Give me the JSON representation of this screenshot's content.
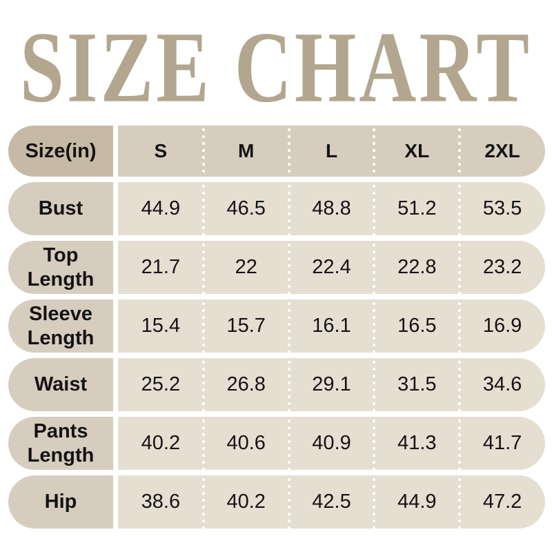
{
  "title": {
    "text": "SIZE CHART"
  },
  "colors": {
    "title_text": "#b2a68f",
    "header_label_bg": "#c6baa6",
    "label_bg": "#d6cdbe",
    "value_bg": "#e5dfd2",
    "table_text": "#131313",
    "separator_dots": "#ffffff",
    "page_bg": "#ffffff"
  },
  "table": {
    "corner_label": "Size(in)",
    "columns": [
      "S",
      "M",
      "L",
      "XL",
      "2XL"
    ],
    "rows": [
      {
        "label": "Bust",
        "values": [
          "44.9",
          "46.5",
          "48.8",
          "51.2",
          "53.5"
        ]
      },
      {
        "label": "Top Length",
        "values": [
          "21.7",
          "22",
          "22.4",
          "22.8",
          "23.2"
        ]
      },
      {
        "label": "Sleeve Length",
        "values": [
          "15.4",
          "15.7",
          "16.1",
          "16.5",
          "16.9"
        ]
      },
      {
        "label": "Waist",
        "values": [
          "25.2",
          "26.8",
          "29.1",
          "31.5",
          "34.6"
        ]
      },
      {
        "label": "Pants Length",
        "values": [
          "40.2",
          "40.6",
          "40.9",
          "41.3",
          "41.7"
        ]
      },
      {
        "label": "Hip",
        "values": [
          "38.6",
          "40.2",
          "42.5",
          "44.9",
          "47.2"
        ]
      }
    ]
  },
  "chart_data": {
    "type": "table",
    "title": "SIZE CHART",
    "columns": [
      "Size(in)",
      "S",
      "M",
      "L",
      "XL",
      "2XL"
    ],
    "rows": [
      [
        "Bust",
        44.9,
        46.5,
        48.8,
        51.2,
        53.5
      ],
      [
        "Top Length",
        21.7,
        22,
        22.4,
        22.8,
        23.2
      ],
      [
        "Sleeve Length",
        15.4,
        15.7,
        16.1,
        16.5,
        16.9
      ],
      [
        "Waist",
        25.2,
        26.8,
        29.1,
        31.5,
        34.6
      ],
      [
        "Pants Length",
        40.2,
        40.6,
        40.9,
        41.3,
        41.7
      ],
      [
        "Hip",
        38.6,
        40.2,
        42.5,
        44.9,
        47.2
      ]
    ]
  }
}
